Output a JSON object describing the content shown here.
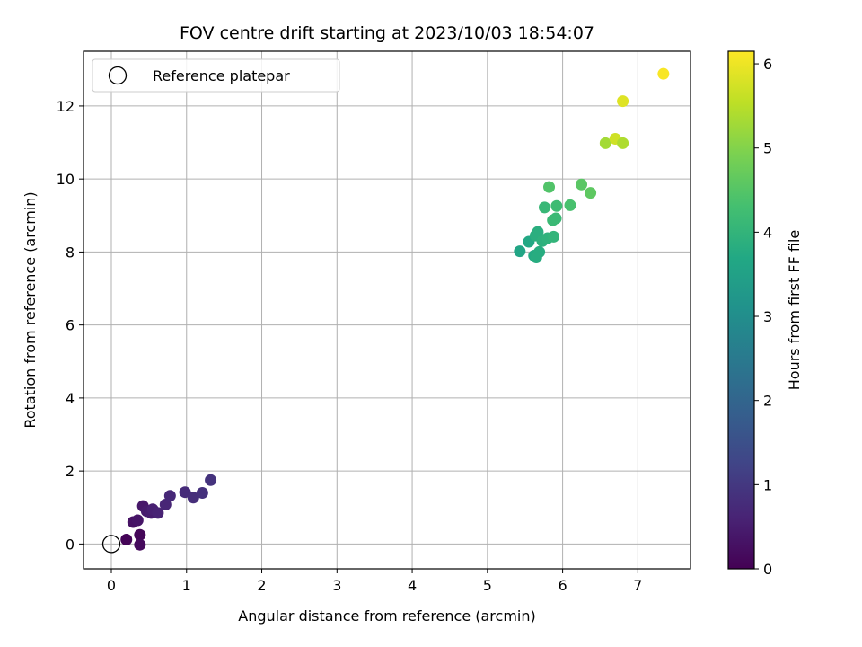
{
  "chart_data": {
    "type": "scatter",
    "title": "FOV centre drift starting at 2023/10/03 18:54:07",
    "xlabel": "Angular distance from reference (arcmin)",
    "ylabel": "Rotation from reference (arcmin)",
    "xlim": [
      -0.37,
      7.7
    ],
    "ylim": [
      -0.68,
      13.5
    ],
    "x_ticks": [
      0,
      1,
      2,
      3,
      4,
      5,
      6,
      7
    ],
    "y_ticks": [
      0,
      2,
      4,
      6,
      8,
      10,
      12
    ],
    "x_tick_labels": [
      "0",
      "1",
      "2",
      "3",
      "4",
      "5",
      "6",
      "7"
    ],
    "y_tick_labels": [
      "0",
      "2",
      "4",
      "6",
      "8",
      "10",
      "12"
    ],
    "grid": true,
    "legend": {
      "placement": "upper-left",
      "entries": [
        "Reference platepar"
      ]
    },
    "reference_point": {
      "x": 0,
      "y": 0
    },
    "colorbar": {
      "label": "Hours from first FF file",
      "range": [
        0,
        6.15
      ],
      "ticks": [
        0,
        1,
        2,
        3,
        4,
        5,
        6
      ],
      "tick_labels": [
        "0",
        "1",
        "2",
        "3",
        "4",
        "5",
        "6"
      ],
      "colormap": "viridis"
    },
    "points": [
      {
        "x": 0.2,
        "y": 0.12,
        "t": 0.05
      },
      {
        "x": 0.38,
        "y": 0.25,
        "t": 0.1
      },
      {
        "x": 0.38,
        "y": -0.02,
        "t": 0.15
      },
      {
        "x": 0.29,
        "y": 0.6,
        "t": 0.3
      },
      {
        "x": 0.35,
        "y": 0.65,
        "t": 0.35
      },
      {
        "x": 0.42,
        "y": 1.04,
        "t": 0.4
      },
      {
        "x": 0.47,
        "y": 0.9,
        "t": 0.45
      },
      {
        "x": 0.53,
        "y": 0.85,
        "t": 0.5
      },
      {
        "x": 0.55,
        "y": 0.95,
        "t": 0.55
      },
      {
        "x": 0.62,
        "y": 0.85,
        "t": 0.6
      },
      {
        "x": 0.72,
        "y": 1.08,
        "t": 0.65
      },
      {
        "x": 0.78,
        "y": 1.32,
        "t": 0.7
      },
      {
        "x": 0.98,
        "y": 1.42,
        "t": 0.75
      },
      {
        "x": 1.09,
        "y": 1.27,
        "t": 0.8
      },
      {
        "x": 1.21,
        "y": 1.4,
        "t": 0.85
      },
      {
        "x": 1.32,
        "y": 1.75,
        "t": 0.9
      },
      {
        "x": 5.43,
        "y": 8.02,
        "t": 3.6
      },
      {
        "x": 5.55,
        "y": 8.28,
        "t": 3.7
      },
      {
        "x": 5.62,
        "y": 7.9,
        "t": 3.75
      },
      {
        "x": 5.65,
        "y": 7.85,
        "t": 3.8
      },
      {
        "x": 5.69,
        "y": 8.0,
        "t": 3.8
      },
      {
        "x": 5.64,
        "y": 8.45,
        "t": 3.85
      },
      {
        "x": 5.67,
        "y": 8.55,
        "t": 3.85
      },
      {
        "x": 5.73,
        "y": 8.3,
        "t": 3.9
      },
      {
        "x": 5.8,
        "y": 8.38,
        "t": 3.95
      },
      {
        "x": 5.88,
        "y": 8.42,
        "t": 4.0
      },
      {
        "x": 5.76,
        "y": 9.22,
        "t": 4.1
      },
      {
        "x": 5.87,
        "y": 8.87,
        "t": 4.15
      },
      {
        "x": 5.91,
        "y": 8.92,
        "t": 4.15
      },
      {
        "x": 5.92,
        "y": 9.26,
        "t": 4.2
      },
      {
        "x": 6.1,
        "y": 9.28,
        "t": 4.35
      },
      {
        "x": 5.82,
        "y": 9.78,
        "t": 4.45
      },
      {
        "x": 6.25,
        "y": 9.85,
        "t": 4.55
      },
      {
        "x": 6.37,
        "y": 9.62,
        "t": 4.6
      },
      {
        "x": 6.57,
        "y": 10.98,
        "t": 5.3
      },
      {
        "x": 6.7,
        "y": 11.1,
        "t": 5.7
      },
      {
        "x": 6.8,
        "y": 10.98,
        "t": 5.4
      },
      {
        "x": 6.8,
        "y": 12.13,
        "t": 5.85
      },
      {
        "x": 7.34,
        "y": 12.88,
        "t": 6.1
      }
    ]
  }
}
